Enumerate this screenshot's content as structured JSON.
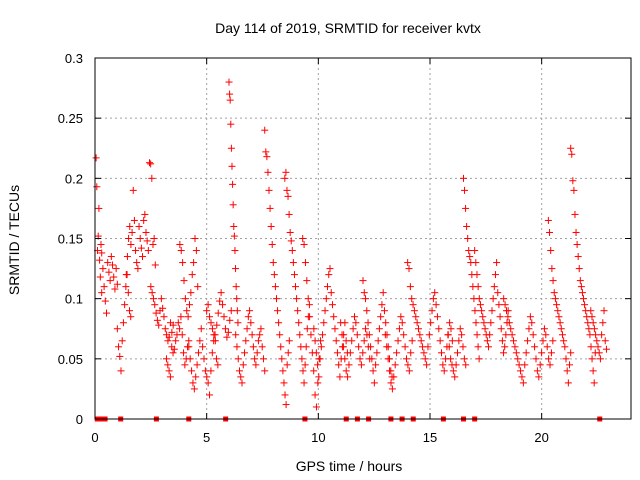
{
  "chart_data": {
    "type": "scatter",
    "title": "Day 114 of 2019, SRMTID for receiver kvtx",
    "xlabel": "GPS time / hours",
    "ylabel": "SRMTID / TECUs",
    "xlim": [
      0,
      24
    ],
    "ylim": [
      0,
      0.3
    ],
    "xticks": [
      0,
      5,
      10,
      15,
      20
    ],
    "xtick_labels": [
      "0",
      "5",
      "10",
      "15",
      "20"
    ],
    "yticks": [
      0,
      0.05,
      0.1,
      0.15,
      0.2,
      0.25,
      0.3
    ],
    "ytick_labels": [
      "0",
      "0.05",
      "0.1",
      "0.15",
      "0.2",
      "0.25",
      "0.3"
    ],
    "grid": true,
    "marker": "plus",
    "series_color": "#ff0000",
    "x_resolution_hours": 0.05,
    "segments": [
      {
        "x_start": 0.05,
        "x_end": 0.3,
        "count": 9,
        "values": [
          0.217,
          0.193,
          0.14,
          0.152,
          0.175,
          0.132,
          0.118,
          0.145,
          0.105
        ]
      },
      {
        "x_start": 0.3,
        "x_end": 1.0,
        "count": 14,
        "values": [
          0.138,
          0.125,
          0.11,
          0.098,
          0.088,
          0.13,
          0.122,
          0.115,
          0.135,
          0.128,
          0.118,
          0.108,
          0.125,
          0.112
        ]
      },
      {
        "x_start": 1.0,
        "x_end": 1.6,
        "count": 12,
        "values": [
          0.075,
          0.06,
          0.052,
          0.04,
          0.065,
          0.08,
          0.095,
          0.11,
          0.12,
          0.105,
          0.09,
          0.085
        ]
      },
      {
        "x_start": 1.4,
        "x_end": 2.7,
        "count": 26,
        "values": [
          0.12,
          0.135,
          0.15,
          0.16,
          0.145,
          0.155,
          0.19,
          0.165,
          0.14,
          0.13,
          0.125,
          0.16,
          0.15,
          0.142,
          0.135,
          0.165,
          0.17,
          0.155,
          0.148,
          0.14,
          0.213,
          0.212,
          0.2,
          0.145,
          0.15,
          0.128
        ]
      },
      {
        "x_start": 2.5,
        "x_end": 3.5,
        "count": 18,
        "values": [
          0.11,
          0.105,
          0.1,
          0.095,
          0.088,
          0.082,
          0.078,
          0.09,
          0.1,
          0.092,
          0.085,
          0.075,
          0.07,
          0.065,
          0.068,
          0.08,
          0.072,
          0.078
        ]
      },
      {
        "x_start": 3.2,
        "x_end": 4.2,
        "count": 18,
        "values": [
          0.05,
          0.045,
          0.04,
          0.035,
          0.06,
          0.055,
          0.058,
          0.065,
          0.07,
          0.08,
          0.075,
          0.085,
          0.07,
          0.055,
          0.045,
          0.05,
          0.06,
          0.065
        ]
      },
      {
        "x_start": 3.8,
        "x_end": 4.6,
        "count": 14,
        "values": [
          0.145,
          0.14,
          0.13,
          0.115,
          0.1,
          0.09,
          0.085,
          0.095,
          0.105,
          0.12,
          0.13,
          0.15,
          0.14,
          0.11
        ]
      },
      {
        "x_start": 4.2,
        "x_end": 5.5,
        "count": 22,
        "values": [
          0.06,
          0.05,
          0.04,
          0.03,
          0.025,
          0.035,
          0.045,
          0.055,
          0.065,
          0.075,
          0.06,
          0.05,
          0.04,
          0.035,
          0.03,
          0.02,
          0.04,
          0.055,
          0.065,
          0.07,
          0.05,
          0.045
        ]
      },
      {
        "x_start": 5.0,
        "x_end": 6.1,
        "count": 18,
        "values": [
          0.09,
          0.095,
          0.085,
          0.08,
          0.075,
          0.07,
          0.065,
          0.078,
          0.088,
          0.098,
          0.105,
          0.095,
          0.085,
          0.075,
          0.068,
          0.072,
          0.082,
          0.09
        ]
      },
      {
        "x_start": 6.0,
        "x_end": 6.4,
        "count": 16,
        "values": [
          0.28,
          0.27,
          0.265,
          0.245,
          0.225,
          0.21,
          0.195,
          0.178,
          0.16,
          0.152,
          0.14,
          0.125,
          0.11,
          0.1,
          0.09,
          0.08
        ]
      },
      {
        "x_start": 6.3,
        "x_end": 7.6,
        "count": 24,
        "values": [
          0.07,
          0.06,
          0.05,
          0.04,
          0.035,
          0.03,
          0.045,
          0.055,
          0.065,
          0.075,
          0.085,
          0.09,
          0.08,
          0.07,
          0.06,
          0.05,
          0.045,
          0.055,
          0.065,
          0.07,
          0.075,
          0.06,
          0.05,
          0.04
        ]
      },
      {
        "x_start": 7.6,
        "x_end": 8.7,
        "count": 24,
        "values": [
          0.24,
          0.222,
          0.218,
          0.205,
          0.19,
          0.175,
          0.16,
          0.145,
          0.13,
          0.12,
          0.11,
          0.1,
          0.09,
          0.08,
          0.07,
          0.06,
          0.05,
          0.04,
          0.03,
          0.02,
          0.012,
          0.045,
          0.055,
          0.065
        ]
      },
      {
        "x_start": 8.5,
        "x_end": 9.6,
        "count": 24,
        "values": [
          0.2,
          0.205,
          0.19,
          0.185,
          0.17,
          0.155,
          0.148,
          0.14,
          0.13,
          0.12,
          0.11,
          0.1,
          0.09,
          0.08,
          0.07,
          0.06,
          0.05,
          0.04,
          0.03,
          0.045,
          0.06,
          0.075,
          0.085,
          0.095
        ]
      },
      {
        "x_start": 9.3,
        "x_end": 10.1,
        "count": 14,
        "values": [
          0.15,
          0.145,
          0.13,
          0.115,
          0.1,
          0.085,
          0.07,
          0.055,
          0.04,
          0.02,
          0.01,
          0.03,
          0.05,
          0.065
        ]
      },
      {
        "x_start": 9.8,
        "x_end": 11.3,
        "count": 28,
        "values": [
          0.075,
          0.065,
          0.055,
          0.045,
          0.035,
          0.05,
          0.06,
          0.07,
          0.08,
          0.09,
          0.1,
          0.11,
          0.12,
          0.125,
          0.105,
          0.095,
          0.085,
          0.075,
          0.065,
          0.055,
          0.045,
          0.035,
          0.05,
          0.06,
          0.07,
          0.08,
          0.065,
          0.055
        ]
      },
      {
        "x_start": 11.0,
        "x_end": 12.3,
        "count": 22,
        "values": [
          0.08,
          0.07,
          0.06,
          0.05,
          0.04,
          0.035,
          0.045,
          0.055,
          0.065,
          0.075,
          0.085,
          0.08,
          0.07,
          0.06,
          0.05,
          0.045,
          0.055,
          0.065,
          0.075,
          0.07,
          0.06,
          0.05
        ]
      },
      {
        "x_start": 12.0,
        "x_end": 13.3,
        "count": 24,
        "values": [
          0.115,
          0.105,
          0.1,
          0.09,
          0.08,
          0.07,
          0.06,
          0.05,
          0.04,
          0.03,
          0.045,
          0.055,
          0.065,
          0.075,
          0.085,
          0.095,
          0.105,
          0.09,
          0.08,
          0.07,
          0.06,
          0.05,
          0.04,
          0.035
        ]
      },
      {
        "x_start": 13.0,
        "x_end": 14.2,
        "count": 20,
        "values": [
          0.07,
          0.06,
          0.05,
          0.04,
          0.03,
          0.025,
          0.035,
          0.045,
          0.055,
          0.065,
          0.075,
          0.085,
          0.08,
          0.07,
          0.06,
          0.05,
          0.045,
          0.04,
          0.055,
          0.065
        ]
      },
      {
        "x_start": 14.0,
        "x_end": 16.0,
        "count": 34,
        "values": [
          0.13,
          0.125,
          0.11,
          0.1,
          0.095,
          0.09,
          0.085,
          0.08,
          0.075,
          0.07,
          0.065,
          0.06,
          0.055,
          0.05,
          0.045,
          0.06,
          0.07,
          0.08,
          0.09,
          0.1,
          0.105,
          0.095,
          0.085,
          0.075,
          0.065,
          0.055,
          0.045,
          0.04,
          0.05,
          0.06,
          0.07,
          0.08,
          0.075,
          0.065
        ]
      },
      {
        "x_start": 15.8,
        "x_end": 16.6,
        "count": 14,
        "values": [
          0.07,
          0.06,
          0.05,
          0.045,
          0.04,
          0.035,
          0.045,
          0.055,
          0.065,
          0.075,
          0.07,
          0.06,
          0.05,
          0.045
        ]
      },
      {
        "x_start": 16.5,
        "x_end": 17.2,
        "count": 16,
        "values": [
          0.2,
          0.19,
          0.175,
          0.16,
          0.15,
          0.14,
          0.135,
          0.13,
          0.12,
          0.11,
          0.1,
          0.09,
          0.08,
          0.07,
          0.06,
          0.05
        ]
      },
      {
        "x_start": 17.0,
        "x_end": 18.5,
        "count": 30,
        "values": [
          0.14,
          0.13,
          0.12,
          0.11,
          0.1,
          0.095,
          0.09,
          0.085,
          0.08,
          0.075,
          0.07,
          0.065,
          0.06,
          0.07,
          0.08,
          0.09,
          0.1,
          0.11,
          0.12,
          0.13,
          0.105,
          0.095,
          0.085,
          0.075,
          0.065,
          0.055,
          0.06,
          0.07,
          0.08,
          0.09
        ]
      },
      {
        "x_start": 18.3,
        "x_end": 20.5,
        "count": 36,
        "values": [
          0.1,
          0.095,
          0.09,
          0.085,
          0.08,
          0.075,
          0.07,
          0.065,
          0.06,
          0.055,
          0.05,
          0.045,
          0.04,
          0.035,
          0.03,
          0.045,
          0.055,
          0.065,
          0.075,
          0.085,
          0.08,
          0.07,
          0.06,
          0.05,
          0.04,
          0.035,
          0.045,
          0.055,
          0.065,
          0.075,
          0.07,
          0.06,
          0.05,
          0.045,
          0.055,
          0.065
        ]
      },
      {
        "x_start": 20.3,
        "x_end": 21.3,
        "count": 20,
        "values": [
          0.165,
          0.155,
          0.14,
          0.125,
          0.115,
          0.105,
          0.1,
          0.095,
          0.09,
          0.085,
          0.08,
          0.075,
          0.07,
          0.065,
          0.06,
          0.05,
          0.04,
          0.03,
          0.045,
          0.055
        ]
      },
      {
        "x_start": 21.3,
        "x_end": 22.4,
        "count": 24,
        "values": [
          0.225,
          0.22,
          0.198,
          0.19,
          0.17,
          0.155,
          0.145,
          0.135,
          0.125,
          0.115,
          0.11,
          0.105,
          0.1,
          0.095,
          0.09,
          0.085,
          0.08,
          0.075,
          0.07,
          0.06,
          0.05,
          0.04,
          0.03,
          0.055
        ]
      },
      {
        "x_start": 22.2,
        "x_end": 22.9,
        "count": 14,
        "values": [
          0.09,
          0.085,
          0.08,
          0.075,
          0.07,
          0.065,
          0.06,
          0.055,
          0.05,
          0.07,
          0.08,
          0.09,
          0.065,
          0.058
        ]
      }
    ],
    "zero_markers_x": [
      0.1,
      0.3,
      0.45,
      1.15,
      2.75,
      4.2,
      5.85,
      9.4,
      11.25,
      11.75,
      12.25,
      13.25,
      13.75,
      14.25,
      15.6,
      16.5,
      17.0,
      22.6
    ]
  }
}
